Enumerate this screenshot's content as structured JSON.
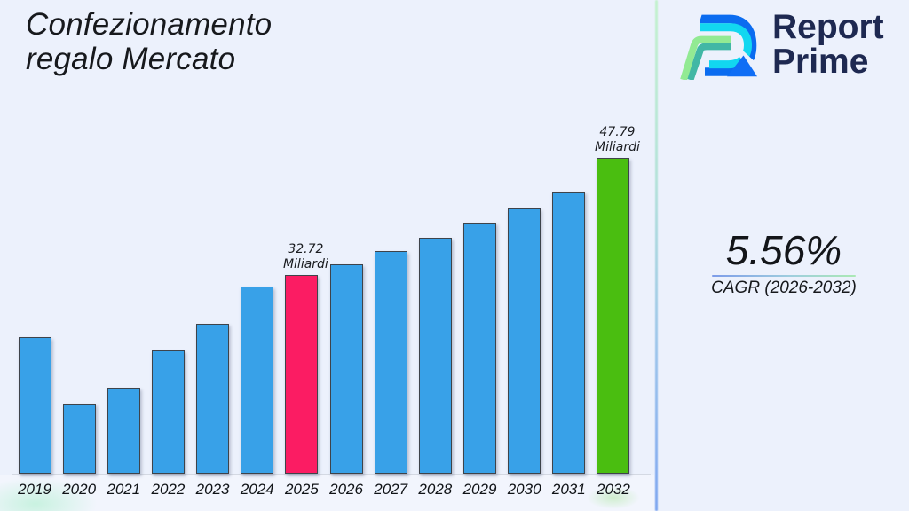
{
  "page": {
    "background_color": "#ecf1fc",
    "separator_gradient_top": "#c4f2cf",
    "separator_gradient_bottom": "#7fa7f0"
  },
  "header": {
    "title_line1": "Confezionamento",
    "title_line2": "regalo Mercato"
  },
  "logo": {
    "icon": "report-prime-stylized-R",
    "brand_line1": "Report",
    "brand_line2": "Prime",
    "brand_color": "#1e2951",
    "mark_colors": {
      "outer_blue": "#0b6ff2",
      "inner_cyan": "#18d7f0",
      "light_green": "#90ec92",
      "teal": "#41b9a5",
      "leg_blue": "#1473f4"
    }
  },
  "stats": {
    "cagr_value": "5.56%",
    "cagr_label": "CAGR (2026-2032)"
  },
  "chart_data": {
    "type": "bar",
    "title": "Confezionamento regalo Mercato",
    "xlabel": "",
    "ylabel": "",
    "unit": "Miliardi",
    "grid": false,
    "legend": false,
    "categories": [
      "2019",
      "2020",
      "2021",
      "2022",
      "2023",
      "2024",
      "2025",
      "2026",
      "2027",
      "2028",
      "2029",
      "2030",
      "2031",
      "2032"
    ],
    "values": [
      24.7,
      16.2,
      18.2,
      23.0,
      26.4,
      31.2,
      32.72,
      34.1,
      35.8,
      37.5,
      39.5,
      41.3,
      43.5,
      47.79
    ],
    "ylim": [
      7.15,
      53
    ],
    "bar_colors": {
      "default": "#38a1e8",
      "2025": "#fb1c63",
      "2032": "#4abe10"
    },
    "bar_edge_color": "#3e434a",
    "annotations": [
      {
        "category": "2025",
        "line1": "32.72",
        "line2": "Miliardi"
      },
      {
        "category": "2032",
        "line1": "47.79",
        "line2": "Miliardi"
      }
    ]
  }
}
